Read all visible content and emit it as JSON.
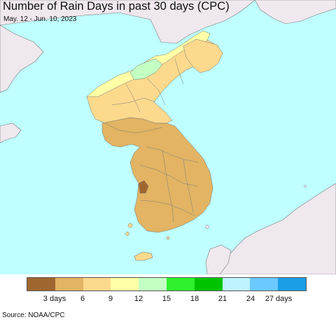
{
  "header": {
    "title": "Number of Rain Days in past 30 days (CPC)",
    "subtitle": "May. 12 - Jun. 10, 2023"
  },
  "map": {
    "ocean_color": "#bfffff",
    "land_outside_color": "#efe8ee",
    "border_color": "#6a6a6a"
  },
  "legend": {
    "colors": [
      "#a0662f",
      "#e2b463",
      "#fcd98c",
      "#feffa6",
      "#c3ffc3",
      "#2ef02e",
      "#00c300",
      "#bff3ff",
      "#6bc9ff",
      "#1b9ee6"
    ],
    "labels": [
      "3 days",
      "6",
      "9",
      "12",
      "15",
      "18",
      "21",
      "24",
      "27 days"
    ]
  },
  "footer": {
    "source": "Source: NOAA/CPC"
  }
}
